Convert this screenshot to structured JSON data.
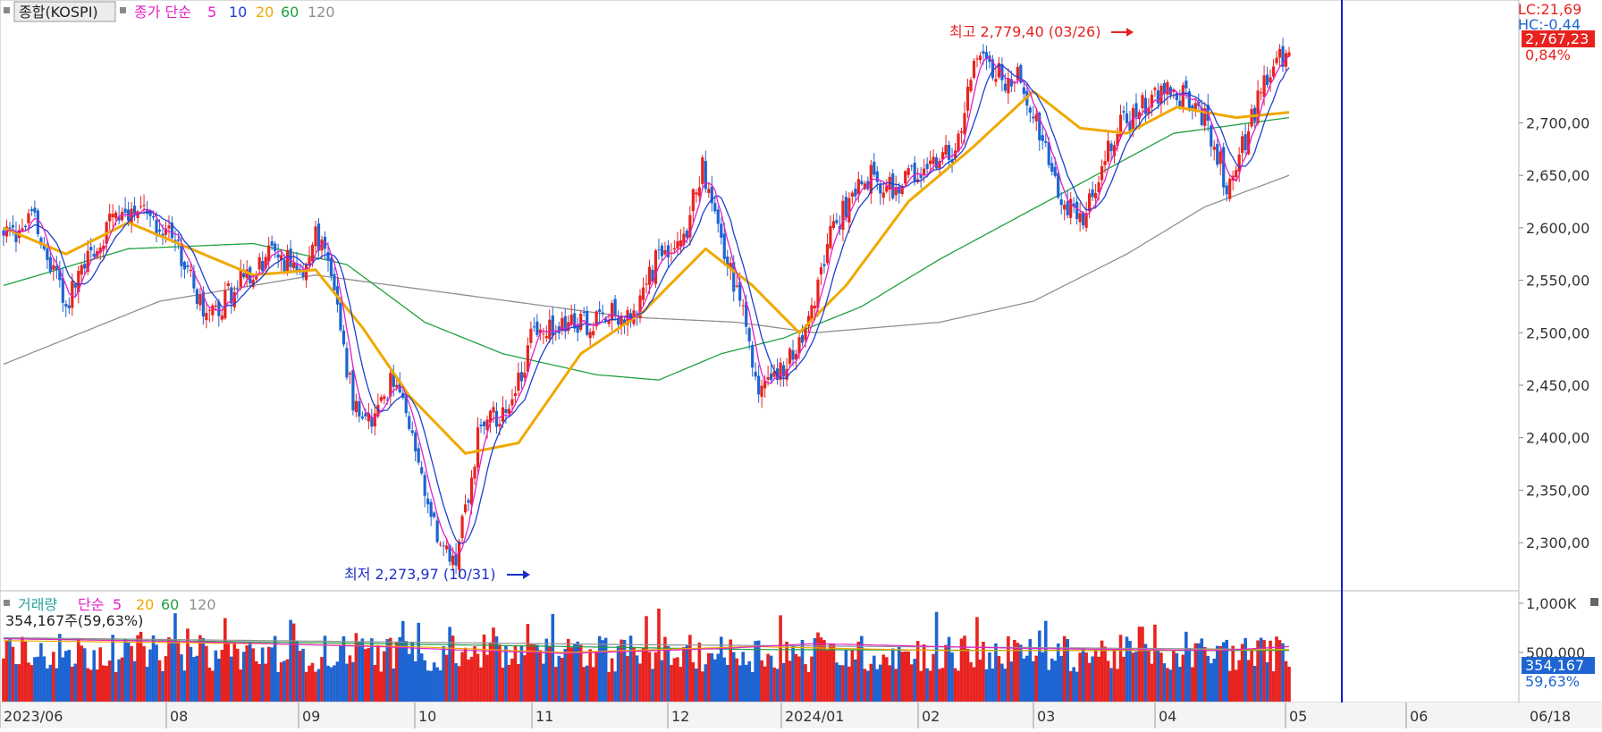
{
  "legend_price": {
    "index_name": "종합(KOSPI)",
    "ma_label": "종가 단순",
    "periods": [
      {
        "label": "5",
        "color": "#e020c8"
      },
      {
        "label": "10",
        "color": "#2040d0"
      },
      {
        "label": "20",
        "color": "#f0a800"
      },
      {
        "label": "60",
        "color": "#20a040"
      },
      {
        "label": "120",
        "color": "#909090"
      }
    ]
  },
  "legend_volume": {
    "name": "거래량",
    "ma_label": "단순",
    "periods": [
      {
        "label": "5",
        "color": "#e020c8"
      },
      {
        "label": "20",
        "color": "#f0a800"
      },
      {
        "label": "60",
        "color": "#20a040"
      },
      {
        "label": "120",
        "color": "#909090"
      }
    ],
    "current": "354,167주(59,63%)"
  },
  "annotations": {
    "high_text": "최고 2,779,40 (03/26)",
    "low_text": "최저 2,273,97 (10/31)"
  },
  "right_info": {
    "lc": "LC:21,69",
    "hc": "HC:-0,44",
    "price": "2,767,23",
    "pct": "0,84%",
    "vol": "354,167",
    "vol_pct": "59,63%"
  },
  "colors": {
    "up": "#e8231f",
    "down": "#1e64d2",
    "ma5": "#e020c8",
    "ma10": "#2040d0",
    "ma20": "#f0a800",
    "ma60": "#20a040",
    "ma120": "#909090",
    "crosshair": "#1a1ad0"
  },
  "chart_data": {
    "type": "candlestick",
    "title": "종합(KOSPI)",
    "y_ticks": [
      "2,300,00",
      "2,350,00",
      "2,400,00",
      "2,450,00",
      "2,500,00",
      "2,550,00",
      "2,600,00",
      "2,650,00",
      "2,700,00"
    ],
    "ylim": [
      2255,
      2800
    ],
    "volume_ticks": [
      "1,000K",
      "500,000"
    ],
    "volume_ylim": [
      0,
      1000000
    ],
    "x_labels": [
      "2023/06",
      "08",
      "09",
      "10",
      "11",
      "12",
      "2024/01",
      "02",
      "03",
      "04",
      "05",
      "06",
      "06/18"
    ],
    "grid": false,
    "high": {
      "value": 2779.4,
      "date": "03/26"
    },
    "low": {
      "value": 2273.97,
      "date": "10/31"
    },
    "last_close": 2767.23,
    "close_anchors": [
      [
        0,
        2590
      ],
      [
        10,
        2605
      ],
      [
        20,
        2530
      ],
      [
        35,
        2610
      ],
      [
        45,
        2620
      ],
      [
        55,
        2585
      ],
      [
        65,
        2510
      ],
      [
        75,
        2545
      ],
      [
        85,
        2575
      ],
      [
        95,
        2560
      ],
      [
        100,
        2590
      ],
      [
        106,
        2550
      ],
      [
        112,
        2430
      ],
      [
        118,
        2415
      ],
      [
        126,
        2460
      ],
      [
        132,
        2380
      ],
      [
        140,
        2300
      ],
      [
        145,
        2280
      ],
      [
        152,
        2400
      ],
      [
        158,
        2420
      ],
      [
        164,
        2440
      ],
      [
        170,
        2510
      ],
      [
        178,
        2500
      ],
      [
        186,
        2510
      ],
      [
        194,
        2515
      ],
      [
        202,
        2520
      ],
      [
        210,
        2575
      ],
      [
        218,
        2590
      ],
      [
        224,
        2660
      ],
      [
        230,
        2590
      ],
      [
        236,
        2530
      ],
      [
        242,
        2450
      ],
      [
        250,
        2470
      ],
      [
        258,
        2510
      ],
      [
        266,
        2600
      ],
      [
        276,
        2650
      ],
      [
        286,
        2640
      ],
      [
        294,
        2650
      ],
      [
        304,
        2670
      ],
      [
        312,
        2760
      ],
      [
        318,
        2745
      ],
      [
        326,
        2740
      ],
      [
        334,
        2680
      ],
      [
        340,
        2620
      ],
      [
        346,
        2615
      ],
      [
        356,
        2690
      ],
      [
        366,
        2720
      ],
      [
        374,
        2730
      ],
      [
        380,
        2720
      ],
      [
        386,
        2700
      ],
      [
        392,
        2640
      ],
      [
        398,
        2685
      ],
      [
        406,
        2755
      ],
      [
        412,
        2767
      ]
    ],
    "ma_anchors": {
      "ma20": [
        [
          0,
          2600
        ],
        [
          20,
          2575
        ],
        [
          40,
          2605
        ],
        [
          60,
          2580
        ],
        [
          80,
          2555
        ],
        [
          100,
          2560
        ],
        [
          115,
          2505
        ],
        [
          130,
          2440
        ],
        [
          148,
          2385
        ],
        [
          165,
          2395
        ],
        [
          185,
          2480
        ],
        [
          205,
          2520
        ],
        [
          225,
          2580
        ],
        [
          240,
          2545
        ],
        [
          255,
          2500
        ],
        [
          270,
          2545
        ],
        [
          290,
          2625
        ],
        [
          310,
          2675
        ],
        [
          330,
          2730
        ],
        [
          345,
          2695
        ],
        [
          360,
          2690
        ],
        [
          376,
          2715
        ],
        [
          395,
          2705
        ],
        [
          412,
          2710
        ]
      ],
      "ma60": [
        [
          0,
          2545
        ],
        [
          40,
          2580
        ],
        [
          80,
          2585
        ],
        [
          110,
          2565
        ],
        [
          135,
          2510
        ],
        [
          160,
          2480
        ],
        [
          190,
          2460
        ],
        [
          210,
          2455
        ],
        [
          230,
          2480
        ],
        [
          250,
          2495
        ],
        [
          275,
          2525
        ],
        [
          300,
          2570
        ],
        [
          325,
          2610
        ],
        [
          350,
          2650
        ],
        [
          375,
          2690
        ],
        [
          412,
          2705
        ]
      ],
      "ma120": [
        [
          0,
          2470
        ],
        [
          50,
          2530
        ],
        [
          100,
          2555
        ],
        [
          150,
          2535
        ],
        [
          200,
          2515
        ],
        [
          235,
          2510
        ],
        [
          260,
          2500
        ],
        [
          300,
          2510
        ],
        [
          330,
          2530
        ],
        [
          360,
          2575
        ],
        [
          385,
          2620
        ],
        [
          412,
          2650
        ]
      ],
      "vol5": [
        [
          0,
          640
        ],
        [
          60,
          610
        ],
        [
          120,
          560
        ],
        [
          150,
          520
        ],
        [
          180,
          490
        ],
        [
          230,
          540
        ],
        [
          260,
          590
        ],
        [
          300,
          560
        ],
        [
          330,
          540
        ],
        [
          360,
          530
        ],
        [
          390,
          520
        ],
        [
          412,
          560
        ]
      ],
      "vol20": [
        [
          0,
          620
        ],
        [
          80,
          590
        ],
        [
          130,
          560
        ],
        [
          180,
          500
        ],
        [
          240,
          560
        ],
        [
          300,
          520
        ],
        [
          360,
          520
        ],
        [
          412,
          530
        ]
      ],
      "vol60": [
        [
          0,
          640
        ],
        [
          120,
          590
        ],
        [
          240,
          530
        ],
        [
          330,
          520
        ],
        [
          412,
          520
        ]
      ],
      "vol120": [
        [
          0,
          650
        ],
        [
          200,
          580
        ],
        [
          412,
          530
        ]
      ]
    }
  }
}
